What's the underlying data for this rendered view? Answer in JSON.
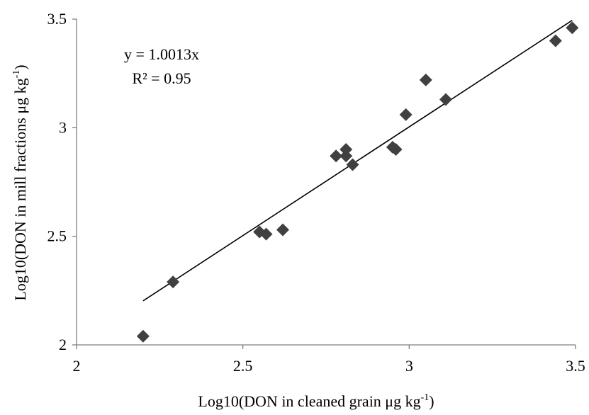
{
  "chart_data": {
    "type": "scatter",
    "xlabel": {
      "main": "Log10(DON in cleaned grain μg kg",
      "sup": "-1",
      "end": ")"
    },
    "ylabel": {
      "main": "Log10(DON in mill fractions μg kg",
      "sup": "-1",
      "end": ")"
    },
    "xlim": [
      2,
      3.5
    ],
    "ylim": [
      2,
      3.5
    ],
    "x_ticks": [
      "2",
      "2.5",
      "3",
      "3.5"
    ],
    "y_ticks": [
      "2",
      "2.5",
      "3",
      "3.5"
    ],
    "grid": false,
    "legend": "none",
    "marker": "diamond",
    "marker_color": "#404040",
    "trendline": {
      "slope": 1.0013,
      "x_range": [
        2.2,
        3.49
      ],
      "equation": "y = 1.0013x",
      "r2_label": "R² = 0.95"
    },
    "points": [
      {
        "x": 2.2,
        "y": 2.04
      },
      {
        "x": 2.29,
        "y": 2.29
      },
      {
        "x": 2.55,
        "y": 2.52
      },
      {
        "x": 2.57,
        "y": 2.51
      },
      {
        "x": 2.62,
        "y": 2.53
      },
      {
        "x": 2.78,
        "y": 2.87
      },
      {
        "x": 2.81,
        "y": 2.9
      },
      {
        "x": 2.81,
        "y": 2.87
      },
      {
        "x": 2.83,
        "y": 2.83
      },
      {
        "x": 2.95,
        "y": 2.91
      },
      {
        "x": 2.96,
        "y": 2.9
      },
      {
        "x": 2.99,
        "y": 3.06
      },
      {
        "x": 3.05,
        "y": 3.22
      },
      {
        "x": 3.11,
        "y": 3.13
      },
      {
        "x": 3.44,
        "y": 3.4
      },
      {
        "x": 3.49,
        "y": 3.46
      }
    ]
  }
}
